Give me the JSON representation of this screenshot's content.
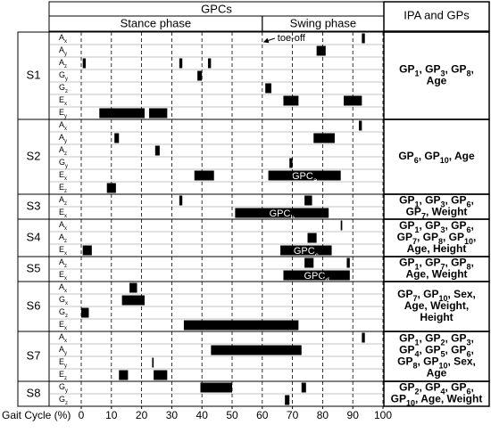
{
  "chart_data": {
    "type": "gantt",
    "title": "GPCs",
    "phase_labels": [
      "Stance phase",
      "Swing phase"
    ],
    "right_header": "IPA and GPs",
    "x_label": "Gait Cycle (%)",
    "xlim": [
      0,
      100
    ],
    "xticks": [
      0,
      10,
      20,
      30,
      40,
      50,
      60,
      70,
      80,
      90,
      100
    ],
    "bar_color": "#000000",
    "annotation": {
      "text": "toe-off",
      "x": 60
    },
    "groups": [
      {
        "name": "S1",
        "gps": [
          "GP1, GP3, GP8,",
          "Age"
        ],
        "rows": [
          {
            "signal": "A",
            "axis": "x",
            "bars": [
              [
                93,
                94
              ]
            ]
          },
          {
            "signal": "A",
            "axis": "y",
            "bars": [
              [
                78,
                81
              ]
            ]
          },
          {
            "signal": "A",
            "axis": "z",
            "bars": [
              [
                0.5,
                1.5
              ],
              [
                32.5,
                33.5
              ],
              [
                42,
                43
              ]
            ]
          },
          {
            "signal": "G",
            "axis": "y",
            "bars": [
              [
                38.5,
                40
              ]
            ]
          },
          {
            "signal": "G",
            "axis": "z",
            "bars": [
              [
                61,
                63
              ]
            ]
          },
          {
            "signal": "E",
            "axis": "x",
            "bars": [
              [
                67,
                72
              ],
              [
                87,
                93
              ]
            ]
          },
          {
            "signal": "E",
            "axis": "y",
            "bars": [
              [
                6,
                21
              ],
              [
                22.5,
                28.5
              ]
            ]
          }
        ]
      },
      {
        "name": "S2",
        "gps": [
          "GP6, GP10, Age"
        ],
        "rows": [
          {
            "signal": "A",
            "axis": "x",
            "bars": [
              [
                92,
                93
              ]
            ]
          },
          {
            "signal": "A",
            "axis": "y",
            "bars": [
              [
                11,
                12.5
              ],
              [
                77,
                84
              ]
            ]
          },
          {
            "signal": "A",
            "axis": "z",
            "bars": [
              [
                24.5,
                26
              ]
            ]
          },
          {
            "signal": "G",
            "axis": "y",
            "bars": [
              [
                69,
                70
              ]
            ]
          },
          {
            "signal": "E",
            "axis": "x",
            "bars": [
              [
                37.5,
                44
              ],
              [
                62,
                86
              ]
            ],
            "gpc": {
              "bar": 1,
              "label": "GPC",
              "sub": "a"
            }
          },
          {
            "signal": "E",
            "axis": "z",
            "bars": [
              [
                8.5,
                11.5
              ]
            ]
          }
        ]
      },
      {
        "name": "S3",
        "gps": [
          "GP1, GP3, GP6,",
          "GP7, Weight"
        ],
        "rows": [
          {
            "signal": "A",
            "axis": "z",
            "bars": [
              [
                32.5,
                33.5
              ],
              [
                74,
                76.5
              ]
            ]
          },
          {
            "signal": "E",
            "axis": "x",
            "bars": [
              [
                51,
                82
              ]
            ],
            "gpc": {
              "bar": 0,
              "label": "GPC",
              "sub": "b"
            }
          }
        ]
      },
      {
        "name": "S4",
        "gps": [
          "GP1, GP3, GP6,",
          "GP7, GP8, GP10,",
          "Age, Height"
        ],
        "rows": [
          {
            "signal": "A",
            "axis": "x",
            "bars": [
              [
                86,
                86.5
              ]
            ]
          },
          {
            "signal": "A",
            "axis": "z",
            "bars": [
              [
                75,
                78
              ]
            ]
          },
          {
            "signal": "E",
            "axis": "x",
            "bars": [
              [
                0.5,
                3.5
              ],
              [
                66,
                83
              ]
            ],
            "gpc": {
              "bar": 1,
              "label": "GPC",
              "sub": "c"
            }
          }
        ]
      },
      {
        "name": "S5",
        "gps": [
          "GP1, GP7, GP8,",
          "Age, Weight"
        ],
        "rows": [
          {
            "signal": "A",
            "axis": "z",
            "bars": [
              [
                74,
                77
              ],
              [
                88,
                89
              ]
            ]
          },
          {
            "signal": "E",
            "axis": "x",
            "bars": [
              [
                67,
                89
              ]
            ],
            "gpc": {
              "bar": 0,
              "label": "GPC",
              "sub": "d"
            }
          }
        ]
      },
      {
        "name": "S6",
        "gps": [
          "GP7, GP10, Sex,",
          "Age, Weight,",
          "Height"
        ],
        "rows": [
          {
            "signal": "A",
            "axis": "x",
            "bars": [
              [
                16,
                18.5
              ]
            ]
          },
          {
            "signal": "G",
            "axis": "x",
            "bars": [
              [
                13.5,
                21
              ]
            ]
          },
          {
            "signal": "G",
            "axis": "z",
            "bars": [
              [
                0,
                2.5
              ]
            ]
          },
          {
            "signal": "E",
            "axis": "x",
            "bars": [
              [
                34,
                72
              ]
            ]
          }
        ]
      },
      {
        "name": "S7",
        "gps": [
          "GP1, GP2, GP3,",
          "GP4, GP5, GP6,",
          "GP8, GP10, Sex,",
          "Age"
        ],
        "rows": [
          {
            "signal": "A",
            "axis": "x",
            "bars": [
              [
                93,
                94
              ]
            ]
          },
          {
            "signal": "A",
            "axis": "y",
            "bars": [
              [
                43,
                73
              ]
            ]
          },
          {
            "signal": "E",
            "axis": "y",
            "bars": [
              [
                23.5,
                24
              ]
            ]
          },
          {
            "signal": "E",
            "axis": "z",
            "bars": [
              [
                12.5,
                15.5
              ],
              [
                24,
                28.5
              ]
            ]
          }
        ]
      },
      {
        "name": "S8",
        "gps": [
          "GP2, GP4, GP6,",
          "GP10, Age, Weight"
        ],
        "rows": [
          {
            "signal": "G",
            "axis": "y",
            "bars": [
              [
                39.5,
                50
              ],
              [
                73,
                74.5
              ]
            ]
          },
          {
            "signal": "G",
            "axis": "z",
            "bars": [
              [
                67.5,
                69
              ]
            ]
          }
        ]
      }
    ]
  }
}
